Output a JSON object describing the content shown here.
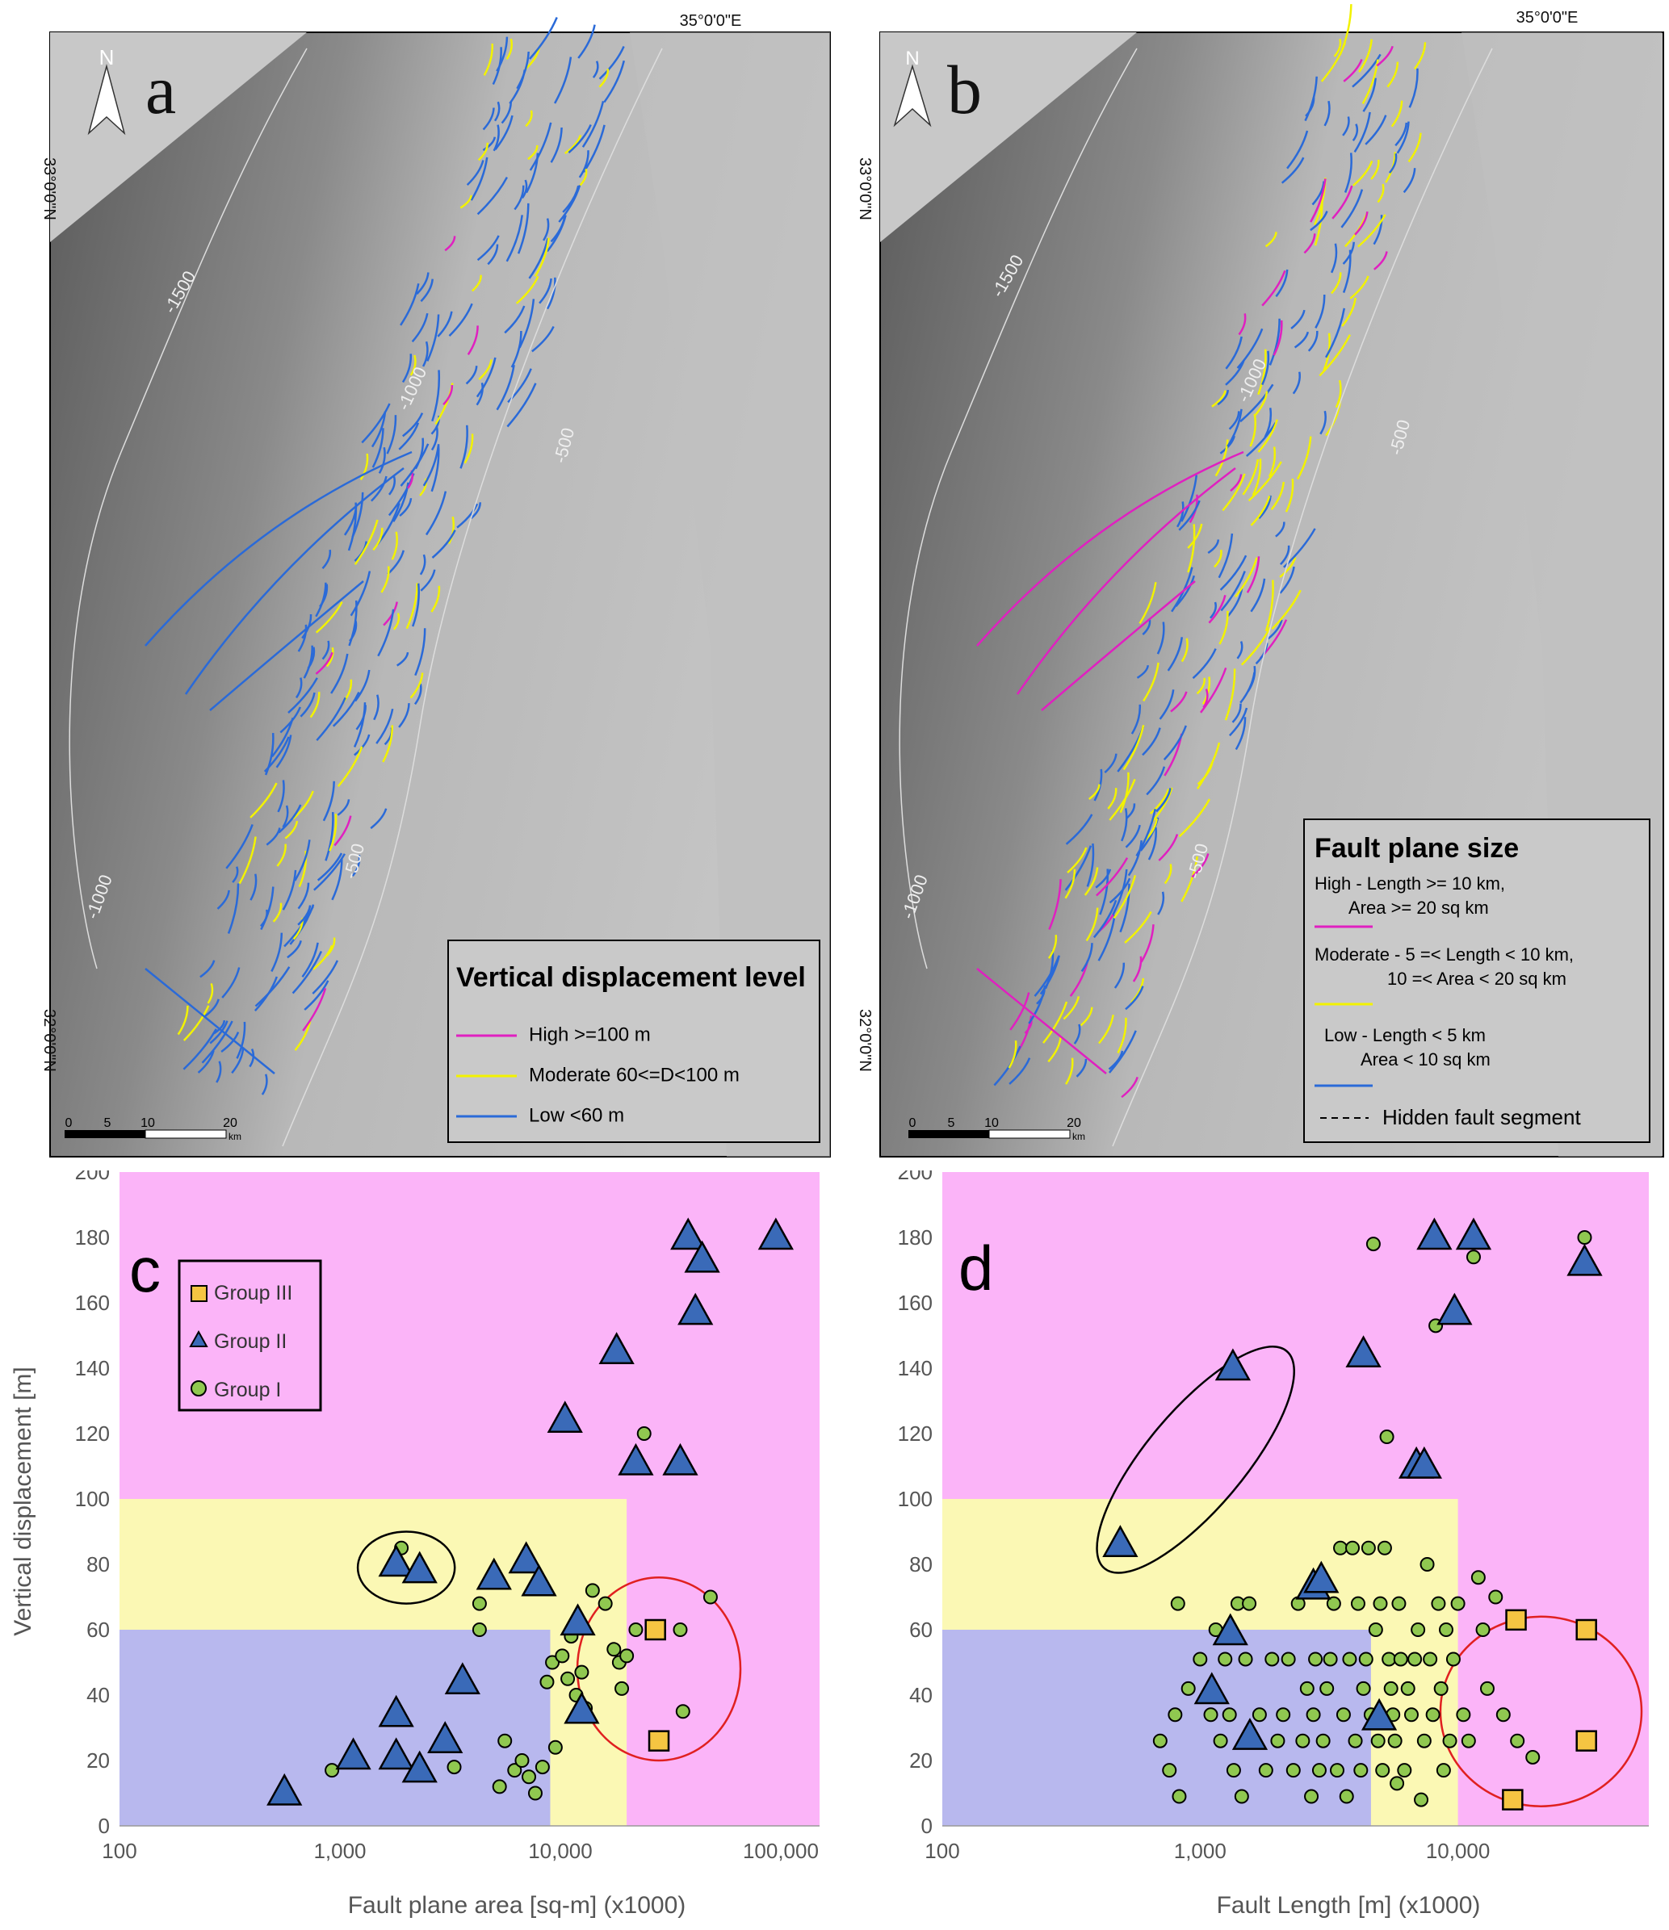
{
  "map_a": {
    "letter": "a",
    "north": "N",
    "coord_top": "35°0'0\"E",
    "coord_lat_top": "33°0'0\"N",
    "coord_lat_bottom": "32°0'0\"N",
    "contours": [
      "-1500",
      "-1000",
      "-500",
      "-1000",
      "-500"
    ],
    "scale_ticks": [
      "0",
      "5",
      "10",
      "20"
    ],
    "scale_unit": "km",
    "legend": {
      "title": "Vertical displacement level",
      "items": [
        {
          "label": "High >=100 m",
          "color": "#e020c0"
        },
        {
          "label": "Moderate  60<=D<100 m",
          "color": "#f2f200"
        },
        {
          "label": "Low <60 m",
          "color": "#2a6ad8"
        }
      ]
    }
  },
  "map_b": {
    "letter": "b",
    "north": "N",
    "coord_top": "35°0'0\"E",
    "coord_lat_top": "33°0'0\"N",
    "coord_lat_bottom": "32°0'0\"N",
    "contours": [
      "-1500",
      "-1000",
      "-500",
      "-1000",
      "-500"
    ],
    "scale_ticks": [
      "0",
      "5",
      "10",
      "20"
    ],
    "scale_unit": "km",
    "legend": {
      "title": "Fault plane size",
      "items": [
        {
          "line1": "High - Length >= 10 km,",
          "line2": "Area >= 20 sq km",
          "color": "#e020c0"
        },
        {
          "line1": "Moderate - 5 =< Length < 10 km,",
          "line2": "10 =< Area < 20 sq km",
          "color": "#f2f200"
        },
        {
          "line1": "Low - Length < 5 km",
          "line2": "Area < 10 sq km",
          "color": "#2a6ad8"
        }
      ],
      "hidden_label": "Hidden fault segment"
    }
  },
  "chart_data": [
    {
      "type": "scatter",
      "letter": "c",
      "xlabel": "Fault plane area [sq-m]  (x1000)",
      "ylabel": "Vertical displacement [m]",
      "x_scale": "log",
      "xlim": [
        100,
        150000
      ],
      "ylim": [
        0,
        200
      ],
      "x_ticks": [
        100,
        1000,
        10000,
        100000
      ],
      "x_tick_labels": [
        "100",
        "1,000",
        "10,000",
        "100,000"
      ],
      "y_ticks": [
        0,
        20,
        40,
        60,
        80,
        100,
        120,
        140,
        160,
        180,
        200
      ],
      "legend": [
        "Group III",
        "Group II",
        "Group I"
      ],
      "zones": [
        {
          "color": "#fbb4f8",
          "x": [
            100,
            150000
          ],
          "y": [
            0,
            200
          ]
        },
        {
          "color": "#fbf8b4",
          "x": [
            100,
            20000
          ],
          "y": [
            0,
            100
          ]
        },
        {
          "color": "#b8b8ee",
          "x": [
            100,
            9000
          ],
          "y": [
            0,
            60
          ]
        }
      ],
      "ellipses": [
        {
          "cx": 2000,
          "cy": 79,
          "rx_dec": 0.22,
          "ry": 11,
          "color": "#000000"
        },
        {
          "cx": 28000,
          "cy": 48,
          "rx_dec": 0.37,
          "ry": 28,
          "color": "#e02020"
        }
      ],
      "series": [
        {
          "name": "Group III",
          "marker": "square",
          "points": [
            [
              27000,
              60
            ],
            [
              28000,
              26
            ]
          ]
        },
        {
          "name": "Group II",
          "marker": "triangle",
          "points": [
            [
              560,
              10
            ],
            [
              1150,
              21
            ],
            [
              1800,
              34
            ],
            [
              1800,
              21
            ],
            [
              2300,
              17
            ],
            [
              1800,
              80
            ],
            [
              2300,
              78
            ],
            [
              3000,
              26
            ],
            [
              3600,
              44
            ],
            [
              5000,
              76
            ],
            [
              7000,
              81
            ],
            [
              8000,
              74
            ],
            [
              10500,
              124
            ],
            [
              12000,
              62
            ],
            [
              12500,
              35
            ],
            [
              18000,
              145
            ],
            [
              22000,
              111
            ],
            [
              35000,
              111
            ],
            [
              38000,
              180
            ],
            [
              41000,
              157
            ],
            [
              44000,
              173
            ],
            [
              95000,
              180
            ]
          ]
        },
        {
          "name": "Group I",
          "marker": "circle",
          "points": [
            [
              920,
              17
            ],
            [
              1900,
              85
            ],
            [
              3300,
              18
            ],
            [
              4300,
              68
            ],
            [
              4300,
              60
            ],
            [
              5600,
              26
            ],
            [
              5300,
              12
            ],
            [
              6200,
              17
            ],
            [
              6700,
              20
            ],
            [
              7200,
              15
            ],
            [
              7700,
              10
            ],
            [
              8300,
              18
            ],
            [
              8700,
              44
            ],
            [
              9500,
              24
            ],
            [
              9200,
              50
            ],
            [
              10200,
              52
            ],
            [
              10800,
              45
            ],
            [
              11200,
              58
            ],
            [
              11800,
              40
            ],
            [
              12500,
              47
            ],
            [
              13000,
              36
            ],
            [
              14000,
              72
            ],
            [
              16000,
              68
            ],
            [
              17500,
              54
            ],
            [
              18500,
              50
            ],
            [
              19000,
              42
            ],
            [
              20000,
              52
            ],
            [
              22000,
              60
            ],
            [
              24000,
              120
            ],
            [
              35000,
              60
            ],
            [
              36000,
              35
            ],
            [
              48000,
              70
            ]
          ]
        }
      ]
    },
    {
      "type": "scatter",
      "letter": "d",
      "xlabel": "Fault Length [m]  (x1000)",
      "ylabel": "",
      "x_scale": "log",
      "xlim": [
        100,
        55000
      ],
      "ylim": [
        0,
        200
      ],
      "x_ticks": [
        100,
        1000,
        10000
      ],
      "x_tick_labels": [
        "100",
        "1,000",
        "10,000"
      ],
      "y_ticks": [
        0,
        20,
        40,
        60,
        80,
        100,
        120,
        140,
        160,
        180,
        200
      ],
      "zones": [
        {
          "color": "#fbb4f8",
          "x": [
            100,
            55000
          ],
          "y": [
            0,
            200
          ]
        },
        {
          "color": "#fbf8b4",
          "x": [
            100,
            10000
          ],
          "y": [
            0,
            100
          ]
        },
        {
          "color": "#b8b8ee",
          "x": [
            100,
            4600
          ],
          "y": [
            0,
            60
          ]
        }
      ],
      "ellipses": [
        {
          "cx": 960,
          "cy": 112,
          "rx_dec": 0.55,
          "ry": 15,
          "angle": -50,
          "color": "#000000"
        },
        {
          "cx": 21000,
          "cy": 35,
          "rx_dec": 0.39,
          "ry": 29,
          "color": "#e02020"
        }
      ],
      "series": [
        {
          "name": "Group III",
          "marker": "square",
          "points": [
            [
              16800,
              63
            ],
            [
              31500,
              60
            ],
            [
              31500,
              26
            ],
            [
              16300,
              8
            ]
          ]
        },
        {
          "name": "Group II",
          "marker": "triangle",
          "points": [
            [
              490,
              86
            ],
            [
              1110,
              41
            ],
            [
              1340,
              140
            ],
            [
              1310,
              59
            ],
            [
              1560,
              27
            ],
            [
              2750,
              73
            ],
            [
              2950,
              75
            ],
            [
              4300,
              144
            ],
            [
              4950,
              33
            ],
            [
              6900,
              110
            ],
            [
              7400,
              110
            ],
            [
              8100,
              180
            ],
            [
              9700,
              157
            ],
            [
              11500,
              180
            ],
            [
              31000,
              172
            ]
          ]
        },
        {
          "name": "Group I",
          "marker": "circle",
          "points": [
            [
              700,
              26
            ],
            [
              760,
              17
            ],
            [
              830,
              9
            ],
            [
              800,
              34
            ],
            [
              820,
              68
            ],
            [
              900,
              42
            ],
            [
              1000,
              51
            ],
            [
              1100,
              34
            ],
            [
              1150,
              60
            ],
            [
              1200,
              26
            ],
            [
              1250,
              51
            ],
            [
              1300,
              34
            ],
            [
              1350,
              17
            ],
            [
              1400,
              68
            ],
            [
              1450,
              9
            ],
            [
              1500,
              51
            ],
            [
              1550,
              68
            ],
            [
              1700,
              34
            ],
            [
              1800,
              17
            ],
            [
              1900,
              51
            ],
            [
              2000,
              26
            ],
            [
              2100,
              34
            ],
            [
              2200,
              51
            ],
            [
              2300,
              17
            ],
            [
              2400,
              68
            ],
            [
              2500,
              26
            ],
            [
              2600,
              42
            ],
            [
              2700,
              9
            ],
            [
              2750,
              34
            ],
            [
              2800,
              51
            ],
            [
              2900,
              17
            ],
            [
              3000,
              26
            ],
            [
              3100,
              42
            ],
            [
              3200,
              51
            ],
            [
              3300,
              68
            ],
            [
              3400,
              17
            ],
            [
              3500,
              85
            ],
            [
              3600,
              34
            ],
            [
              3700,
              9
            ],
            [
              3800,
              51
            ],
            [
              3900,
              85
            ],
            [
              4000,
              26
            ],
            [
              4100,
              68
            ],
            [
              4200,
              17
            ],
            [
              4300,
              42
            ],
            [
              4400,
              51
            ],
            [
              4500,
              85
            ],
            [
              4600,
              34
            ],
            [
              4700,
              178
            ],
            [
              4800,
              60
            ],
            [
              4900,
              26
            ],
            [
              5000,
              68
            ],
            [
              5100,
              17
            ],
            [
              5200,
              85
            ],
            [
              5300,
              119
            ],
            [
              5400,
              51
            ],
            [
              5500,
              42
            ],
            [
              5600,
              34
            ],
            [
              5700,
              26
            ],
            [
              5800,
              13
            ],
            [
              5900,
              68
            ],
            [
              6000,
              51
            ],
            [
              6200,
              17
            ],
            [
              6400,
              42
            ],
            [
              6600,
              34
            ],
            [
              6800,
              51
            ],
            [
              7000,
              60
            ],
            [
              7200,
              8
            ],
            [
              7400,
              26
            ],
            [
              7600,
              80
            ],
            [
              7800,
              51
            ],
            [
              8000,
              34
            ],
            [
              8200,
              153
            ],
            [
              8400,
              68
            ],
            [
              8600,
              42
            ],
            [
              8800,
              17
            ],
            [
              9000,
              60
            ],
            [
              9300,
              26
            ],
            [
              9600,
              51
            ],
            [
              10000,
              68
            ],
            [
              10500,
              34
            ],
            [
              11000,
              26
            ],
            [
              11500,
              174
            ],
            [
              12000,
              76
            ],
            [
              12500,
              60
            ],
            [
              13000,
              42
            ],
            [
              14000,
              70
            ],
            [
              15000,
              34
            ],
            [
              17000,
              26
            ],
            [
              19500,
              21
            ],
            [
              31000,
              180
            ]
          ]
        }
      ]
    }
  ]
}
